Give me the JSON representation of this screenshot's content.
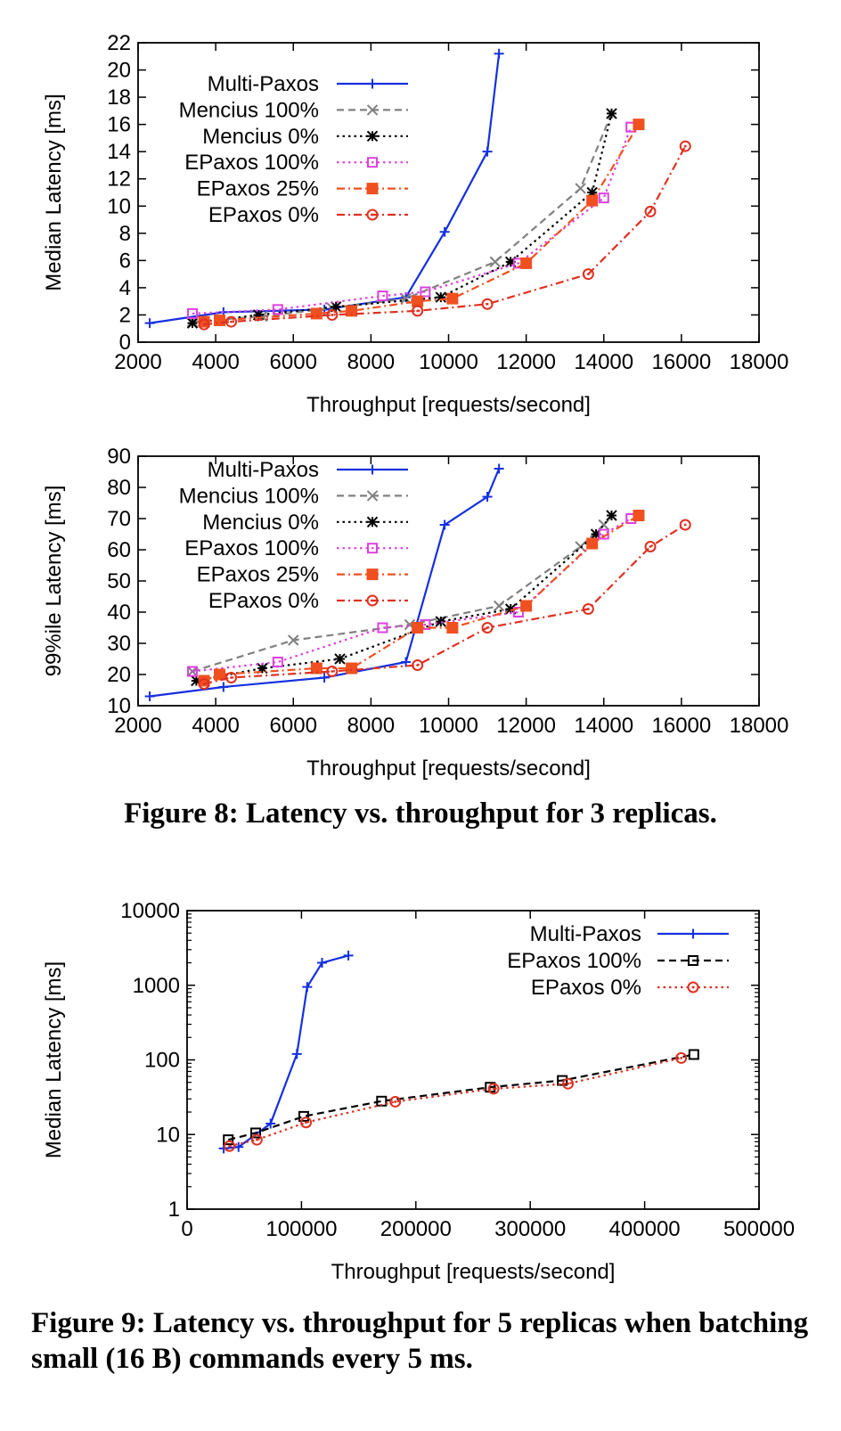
{
  "chart_data": [
    {
      "type": "line",
      "id": "fig8-median",
      "title": "",
      "xlabel": "Throughput [requests/second]",
      "ylabel": "Median Latency [ms]",
      "xlim": [
        2000,
        18000
      ],
      "ylim": [
        0,
        22
      ],
      "xticks": [
        2000,
        4000,
        6000,
        8000,
        10000,
        12000,
        14000,
        16000,
        18000
      ],
      "yticks": [
        0,
        2,
        4,
        6,
        8,
        10,
        12,
        14,
        16,
        18,
        20,
        22
      ],
      "legend_position": "top-left",
      "series": [
        {
          "name": "Multi-Paxos",
          "color": "#1530e0",
          "dash": "solid",
          "marker": "plus",
          "x": [
            2300,
            4200,
            6800,
            8900,
            9900,
            11000,
            11300
          ],
          "y": [
            1.4,
            2.2,
            2.4,
            3.3,
            8.1,
            14.0,
            21.2
          ]
        },
        {
          "name": "Mencius 100%",
          "color": "#808080",
          "dash": "dashed",
          "marker": "x",
          "x": [
            3400,
            5200,
            7000,
            8900,
            11200,
            13400,
            14200
          ],
          "y": [
            1.5,
            1.9,
            2.5,
            3.2,
            5.9,
            11.3,
            16.8
          ]
        },
        {
          "name": "Mencius 0%",
          "color": "#000000",
          "dash": "dotted",
          "marker": "star",
          "x": [
            3400,
            5100,
            7100,
            9800,
            11600,
            13700,
            14200
          ],
          "y": [
            1.4,
            2.0,
            2.6,
            3.3,
            5.9,
            11.0,
            16.8
          ]
        },
        {
          "name": "EPaxos 100%",
          "color": "#e040e0",
          "dash": "dotted",
          "marker": "open-square",
          "x": [
            3400,
            5600,
            8300,
            9400,
            11800,
            14000,
            14700
          ],
          "y": [
            2.1,
            2.4,
            3.4,
            3.7,
            5.8,
            10.6,
            15.8
          ]
        },
        {
          "name": "EPaxos 25%",
          "color": "#f05020",
          "dash": "dash-dot",
          "marker": "filled-square",
          "x": [
            3700,
            4100,
            6600,
            7500,
            9200,
            10100,
            12000,
            13700,
            14900
          ],
          "y": [
            1.5,
            1.6,
            2.1,
            2.3,
            3.0,
            3.2,
            5.8,
            10.4,
            16.0
          ]
        },
        {
          "name": "EPaxos 0%",
          "color": "#e03020",
          "dash": "dash-dot",
          "marker": "open-circle",
          "x": [
            3700,
            4400,
            7000,
            9200,
            11000,
            13600,
            15200,
            16100
          ],
          "y": [
            1.3,
            1.5,
            2.0,
            2.3,
            2.8,
            5.0,
            9.6,
            14.4
          ]
        }
      ]
    },
    {
      "type": "line",
      "id": "fig8-p99",
      "title": "",
      "xlabel": "Throughput [requests/second]",
      "ylabel": "99%ile Latency [ms]",
      "xlim": [
        2000,
        18000
      ],
      "ylim": [
        10,
        90
      ],
      "xticks": [
        2000,
        4000,
        6000,
        8000,
        10000,
        12000,
        14000,
        16000,
        18000
      ],
      "yticks": [
        10,
        20,
        30,
        40,
        50,
        60,
        70,
        80,
        90
      ],
      "legend_position": "top-left",
      "series": [
        {
          "name": "Multi-Paxos",
          "color": "#1530e0",
          "dash": "solid",
          "marker": "plus",
          "x": [
            2300,
            4200,
            6800,
            8900,
            9900,
            11000,
            11300
          ],
          "y": [
            13,
            16,
            19,
            24,
            68,
            77,
            86
          ]
        },
        {
          "name": "Mencius 100%",
          "color": "#808080",
          "dash": "dashed",
          "marker": "x",
          "x": [
            3400,
            6000,
            9000,
            11300,
            13400,
            14000
          ],
          "y": [
            21,
            31,
            36,
            42,
            61,
            68
          ]
        },
        {
          "name": "Mencius 0%",
          "color": "#000000",
          "dash": "dotted",
          "marker": "star",
          "x": [
            3500,
            5200,
            7200,
            9800,
            11600,
            13800,
            14200
          ],
          "y": [
            18,
            22,
            25,
            37,
            41,
            65,
            71
          ]
        },
        {
          "name": "EPaxos 100%",
          "color": "#e040e0",
          "dash": "dotted",
          "marker": "open-square",
          "x": [
            3400,
            5600,
            8300,
            9400,
            11800,
            14000,
            14700
          ],
          "y": [
            21,
            24,
            35,
            36,
            40,
            65,
            70
          ]
        },
        {
          "name": "EPaxos 25%",
          "color": "#f05020",
          "dash": "dash-dot",
          "marker": "filled-square",
          "x": [
            3700,
            4100,
            6600,
            7500,
            9200,
            10100,
            12000,
            13700,
            14900
          ],
          "y": [
            18,
            20,
            22,
            22,
            35,
            35,
            42,
            62,
            71
          ]
        },
        {
          "name": "EPaxos 0%",
          "color": "#e03020",
          "dash": "dash-dot",
          "marker": "open-circle",
          "x": [
            3700,
            4400,
            7000,
            9200,
            11000,
            13600,
            15200,
            16100
          ],
          "y": [
            17,
            19,
            21,
            23,
            35,
            41,
            61,
            68
          ]
        }
      ]
    },
    {
      "type": "line",
      "id": "fig9-median",
      "title": "",
      "xlabel": "Throughput [requests/second]",
      "ylabel": "Median Latency [ms]",
      "xlim": [
        0,
        500000
      ],
      "ylim": [
        1,
        10000
      ],
      "yscale": "log",
      "xticks": [
        0,
        100000,
        200000,
        300000,
        400000,
        500000
      ],
      "yticks": [
        1,
        10,
        100,
        1000,
        10000
      ],
      "legend_position": "top-right",
      "series": [
        {
          "name": "Multi-Paxos",
          "color": "#1530e0",
          "dash": "solid",
          "marker": "plus",
          "x": [
            32000,
            45000,
            73000,
            96000,
            105000,
            118000,
            141000
          ],
          "y": [
            6.5,
            6.8,
            14,
            120,
            950,
            2000,
            2500
          ]
        },
        {
          "name": "EPaxos 100%",
          "color": "#000000",
          "dash": "dashed",
          "marker": "open-square",
          "x": [
            36000,
            60000,
            102000,
            170000,
            265000,
            328000,
            443000
          ],
          "y": [
            8.5,
            10.5,
            17.5,
            28,
            43,
            53,
            118
          ]
        },
        {
          "name": "EPaxos 0%",
          "color": "#e03020",
          "dash": "dotted",
          "marker": "open-circle",
          "x": [
            37000,
            61000,
            104000,
            182000,
            268000,
            333000,
            432000
          ],
          "y": [
            7,
            8.5,
            14.5,
            27.5,
            41,
            48,
            106
          ]
        }
      ]
    }
  ],
  "captions": {
    "fig8": "Figure 8: Latency vs. throughput for 3 replicas.",
    "fig9": "Figure 9: Latency vs. throughput for 5 replicas when batching small (16 B) commands every 5 ms."
  }
}
